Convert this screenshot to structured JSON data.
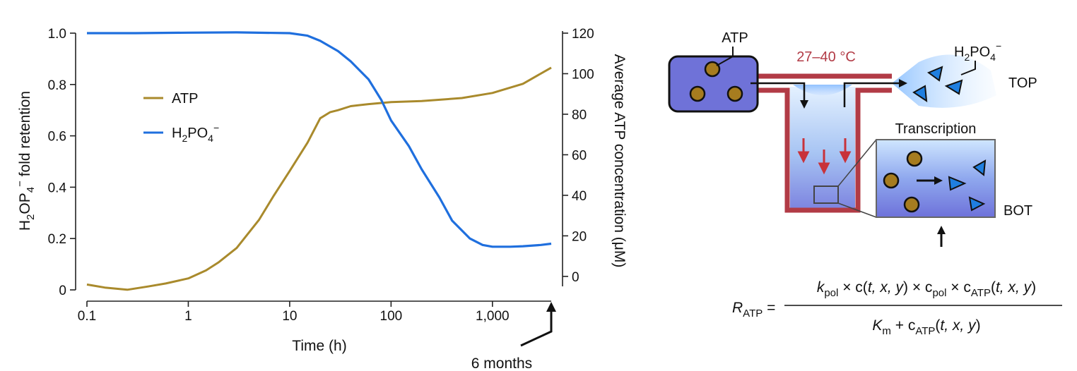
{
  "colors": {
    "atp": "#a98a2c",
    "h2po4": "#1f6fde",
    "wall": "#b23b46",
    "chamber": "#6f72d8",
    "particle": "#a67c1f",
    "temp_text": "#b23b46",
    "arrow_red": "#c8323a",
    "triangle": "#1f7fe0"
  },
  "chart_data": {
    "type": "line",
    "x_scale": "log",
    "xlabel": "Time (h)",
    "x_ticks": [
      "0.1",
      "1",
      "10",
      "100",
      "1,000"
    ],
    "x_tick_values": [
      0.1,
      1,
      10,
      100,
      1000
    ],
    "xlim": [
      0.1,
      3800
    ],
    "ylabel_left_parts": [
      "H",
      "2",
      "OP",
      "4",
      "−",
      " fold retention"
    ],
    "ylim_left": [
      0,
      1.0
    ],
    "y_ticks_left": [
      "0",
      "0.2",
      "0.4",
      "0.6",
      "0.8",
      "1.0"
    ],
    "y_tick_values_left": [
      0,
      0.2,
      0.4,
      0.6,
      0.8,
      1.0
    ],
    "ylabel_right": "Average ATP concentration (μM)",
    "ylim_right": [
      -6.66,
      120
    ],
    "y_ticks_right": [
      "0",
      "20",
      "40",
      "60",
      "80",
      "100",
      "120"
    ],
    "y_tick_values_right": [
      0,
      20,
      40,
      60,
      80,
      100,
      120
    ],
    "grid": false,
    "legend_position": "upper-left-inside",
    "annotation": "6 months",
    "series": [
      {
        "name": "ATP",
        "axis": "right",
        "x": [
          0.1,
          0.15,
          0.25,
          0.4,
          0.6,
          1,
          1.5,
          2,
          3,
          5,
          7,
          10,
          15,
          20,
          25,
          30,
          40,
          60,
          100,
          200,
          500,
          1000,
          2000,
          3800
        ],
        "y": [
          -4,
          -5.5,
          -6.6,
          -5,
          -3.5,
          -1,
          3,
          7,
          14,
          28,
          40,
          52,
          66,
          78,
          81,
          82,
          84,
          85,
          86,
          86.5,
          88,
          90.5,
          95,
          103
        ]
      },
      {
        "name_parts": [
          "H",
          "2",
          "PO",
          "4",
          "−"
        ],
        "axis": "left",
        "x": [
          0.1,
          0.3,
          1,
          3,
          10,
          15,
          20,
          30,
          40,
          60,
          80,
          100,
          150,
          200,
          300,
          400,
          600,
          800,
          1000,
          1500,
          2000,
          3000,
          3800
        ],
        "y": [
          1.0,
          1.0,
          1.002,
          1.003,
          1.0,
          0.99,
          0.97,
          0.93,
          0.89,
          0.82,
          0.74,
          0.66,
          0.56,
          0.47,
          0.36,
          0.27,
          0.2,
          0.175,
          0.168,
          0.168,
          0.17,
          0.175,
          0.18
        ]
      }
    ]
  },
  "diagram": {
    "atp_label": "ATP",
    "temperature": "27–40 °C",
    "product_label_parts": [
      "H",
      "2",
      "PO",
      "4",
      "−"
    ],
    "top_label": "TOP",
    "transcription_label": "Transcription",
    "bot_label": "BOT"
  },
  "formula": {
    "lhs_main": "R",
    "lhs_sub": "ATP",
    "eq": " =",
    "num": [
      "k",
      "pol",
      " × c(",
      "t, x, y",
      ") × c",
      "pol",
      " × c",
      "ATP",
      "(",
      "t, x, y",
      ")"
    ],
    "den": [
      "K",
      "m",
      " + c",
      "ATP",
      "(",
      "t, x, y",
      ")"
    ]
  }
}
